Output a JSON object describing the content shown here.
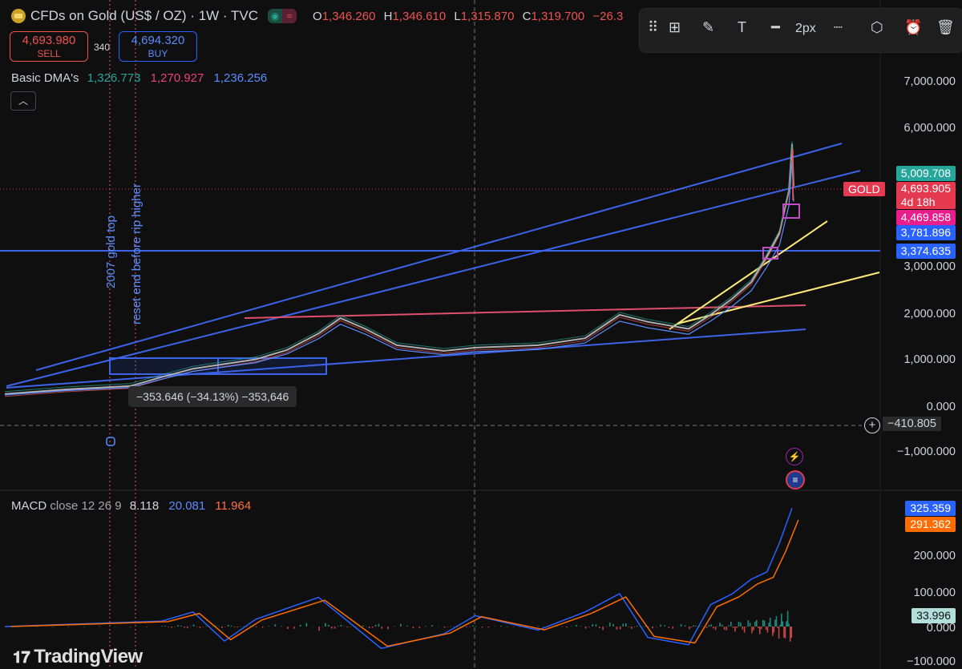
{
  "header": {
    "title": "CFDs on Gold (US$ / OZ) · 1W · TVC",
    "open_label": "O",
    "open": "1,346.260",
    "high_label": "H",
    "high": "1,346.610",
    "low_label": "L",
    "low": "1,315.870",
    "close_label": "C",
    "close": "1,319.700",
    "change": "−26.3"
  },
  "trade": {
    "sell_price": "4,693.980",
    "sell_label": "SELL",
    "spread": "340",
    "buy_price": "4,694.320",
    "buy_label": "BUY"
  },
  "indicator": {
    "name": "Basic DMA's",
    "v1": "1,326.773",
    "v2": "1,270.927",
    "v3": "1,236.256"
  },
  "toolbar": {
    "width_label": "2px"
  },
  "price_axis": [
    "7,000.000",
    "6,000.000",
    "3,000.000",
    "2,000.000",
    "1,000.000",
    "0.000",
    "−1,000.000"
  ],
  "price_tags": {
    "ma_top": "5,009.708",
    "current": "4,693.905",
    "countdown": "4d 18h",
    "ma_mid": "4,469.858",
    "ma_low": "3,781.896",
    "hline": "3,374.635",
    "symbol": "GOLD",
    "crosshair": "−410.805"
  },
  "measure": "−353.646 (−34.13%) −353,646",
  "annotations": {
    "top2007": "2007 gold top",
    "reset": "reset end before rip higher"
  },
  "macd": {
    "label": "MACD",
    "params": "close 12 26 9",
    "hist": "8.118",
    "macd": "20.081",
    "signal": "11.964",
    "tag_macd": "325.359",
    "tag_signal": "291.362",
    "tag_hist": "33.996",
    "axis": [
      "200.000",
      "100.000",
      "0.000",
      "−100.000"
    ]
  },
  "logo": "TradingView",
  "colors": {
    "bg": "#0f0f0f",
    "up": "#26a69a",
    "down": "#ef5350",
    "trend": "#3d63e8",
    "resist": "#e0506e",
    "yellow": "#ffeb7a"
  },
  "chart_data": {
    "type": "line",
    "title": "CFDs on Gold (US$ / OZ) · 1W · TVC",
    "ylim": [
      -1400,
      7600
    ],
    "series": [
      {
        "name": "Basic DMA's",
        "points": [
          [
            2001,
            260
          ],
          [
            2003,
            360
          ],
          [
            2005,
            430
          ],
          [
            2006,
            620
          ],
          [
            2007,
            800
          ],
          [
            2008,
            900
          ],
          [
            2009,
            1000
          ],
          [
            2010,
            1200
          ],
          [
            2011,
            1550
          ],
          [
            2011.7,
            1880
          ],
          [
            2012.5,
            1650
          ],
          [
            2013.5,
            1300
          ],
          [
            2015,
            1180
          ],
          [
            2016,
            1250
          ],
          [
            2018,
            1300
          ],
          [
            2019.5,
            1450
          ],
          [
            2020.6,
            1950
          ],
          [
            2021.5,
            1800
          ],
          [
            2022.8,
            1650
          ],
          [
            2023.5,
            1950
          ],
          [
            2024.2,
            2300
          ],
          [
            2024.8,
            2650
          ],
          [
            2025.3,
            3200
          ],
          [
            2025.7,
            3700
          ],
          [
            2026.0,
            4600
          ],
          [
            2026.1,
            5600
          ],
          [
            2026.15,
            4694
          ]
        ]
      }
    ],
    "macd": [
      [
        2001,
        0
      ],
      [
        2006,
        15
      ],
      [
        2007,
        40
      ],
      [
        2008,
        -40
      ],
      [
        2009,
        20
      ],
      [
        2011,
        80
      ],
      [
        2012,
        10
      ],
      [
        2013,
        -60
      ],
      [
        2015,
        -20
      ],
      [
        2016,
        30
      ],
      [
        2018,
        -10
      ],
      [
        2019.5,
        40
      ],
      [
        2020.6,
        90
      ],
      [
        2021.5,
        -30
      ],
      [
        2022.8,
        -50
      ],
      [
        2023.5,
        60
      ],
      [
        2024.2,
        90
      ],
      [
        2024.8,
        130
      ],
      [
        2025.3,
        150
      ],
      [
        2025.7,
        230
      ],
      [
        2026.1,
        325
      ]
    ]
  }
}
